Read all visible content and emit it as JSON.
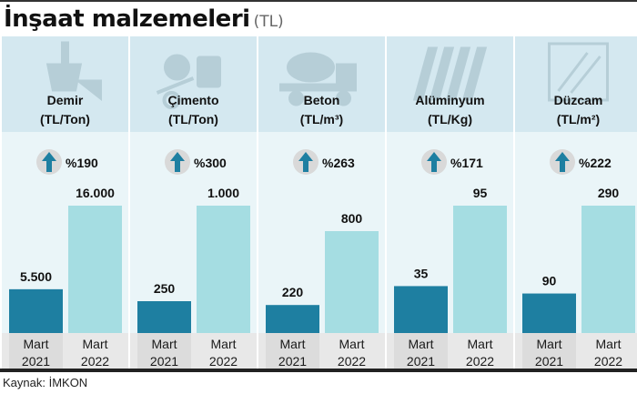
{
  "header": {
    "title": "İnşaat malzemeleri",
    "unit": "(TL)"
  },
  "source": "Kaynak: İMKON",
  "colors": {
    "bar_2021": "#1e7fa1",
    "bar_2022": "#a5dde2",
    "panel_top": "#d4e8f0",
    "panel_bottom": "#eaf5f8",
    "arrow": "#1e7fa1",
    "axis_band": "#e8e8e8"
  },
  "chart_data": {
    "type": "bar",
    "categories": [
      "Mart 2021",
      "Mart 2022"
    ],
    "groups": [
      {
        "name": "Demir",
        "unit": "(TL/Ton)",
        "icon": "steel-ladle-icon",
        "change": "%190",
        "values": [
          5500,
          16000
        ],
        "labels": [
          "5.500",
          "16.000"
        ],
        "ref": 16000
      },
      {
        "name": "Çimento",
        "unit": "(TL/Ton)",
        "icon": "cement-mixer-icon",
        "change": "%300",
        "values": [
          250,
          1000
        ],
        "labels": [
          "250",
          "1.000"
        ],
        "ref": 1000
      },
      {
        "name": "Beton",
        "unit": "(TL/m³)",
        "icon": "concrete-truck-icon",
        "change": "%263",
        "values": [
          220,
          800
        ],
        "labels": [
          "220",
          "800"
        ],
        "ref": 1000
      },
      {
        "name": "Alüminyum",
        "unit": "(TL/Kg)",
        "icon": "metal-sheet-icon",
        "change": "%171",
        "values": [
          35,
          95
        ],
        "labels": [
          "35",
          "95"
        ],
        "ref": 95
      },
      {
        "name": "Düzcam",
        "unit": "(TL/m²)",
        "icon": "glass-pane-icon",
        "change": "%222",
        "values": [
          90,
          290
        ],
        "labels": [
          "90",
          "290"
        ],
        "ref": 290
      }
    ]
  }
}
